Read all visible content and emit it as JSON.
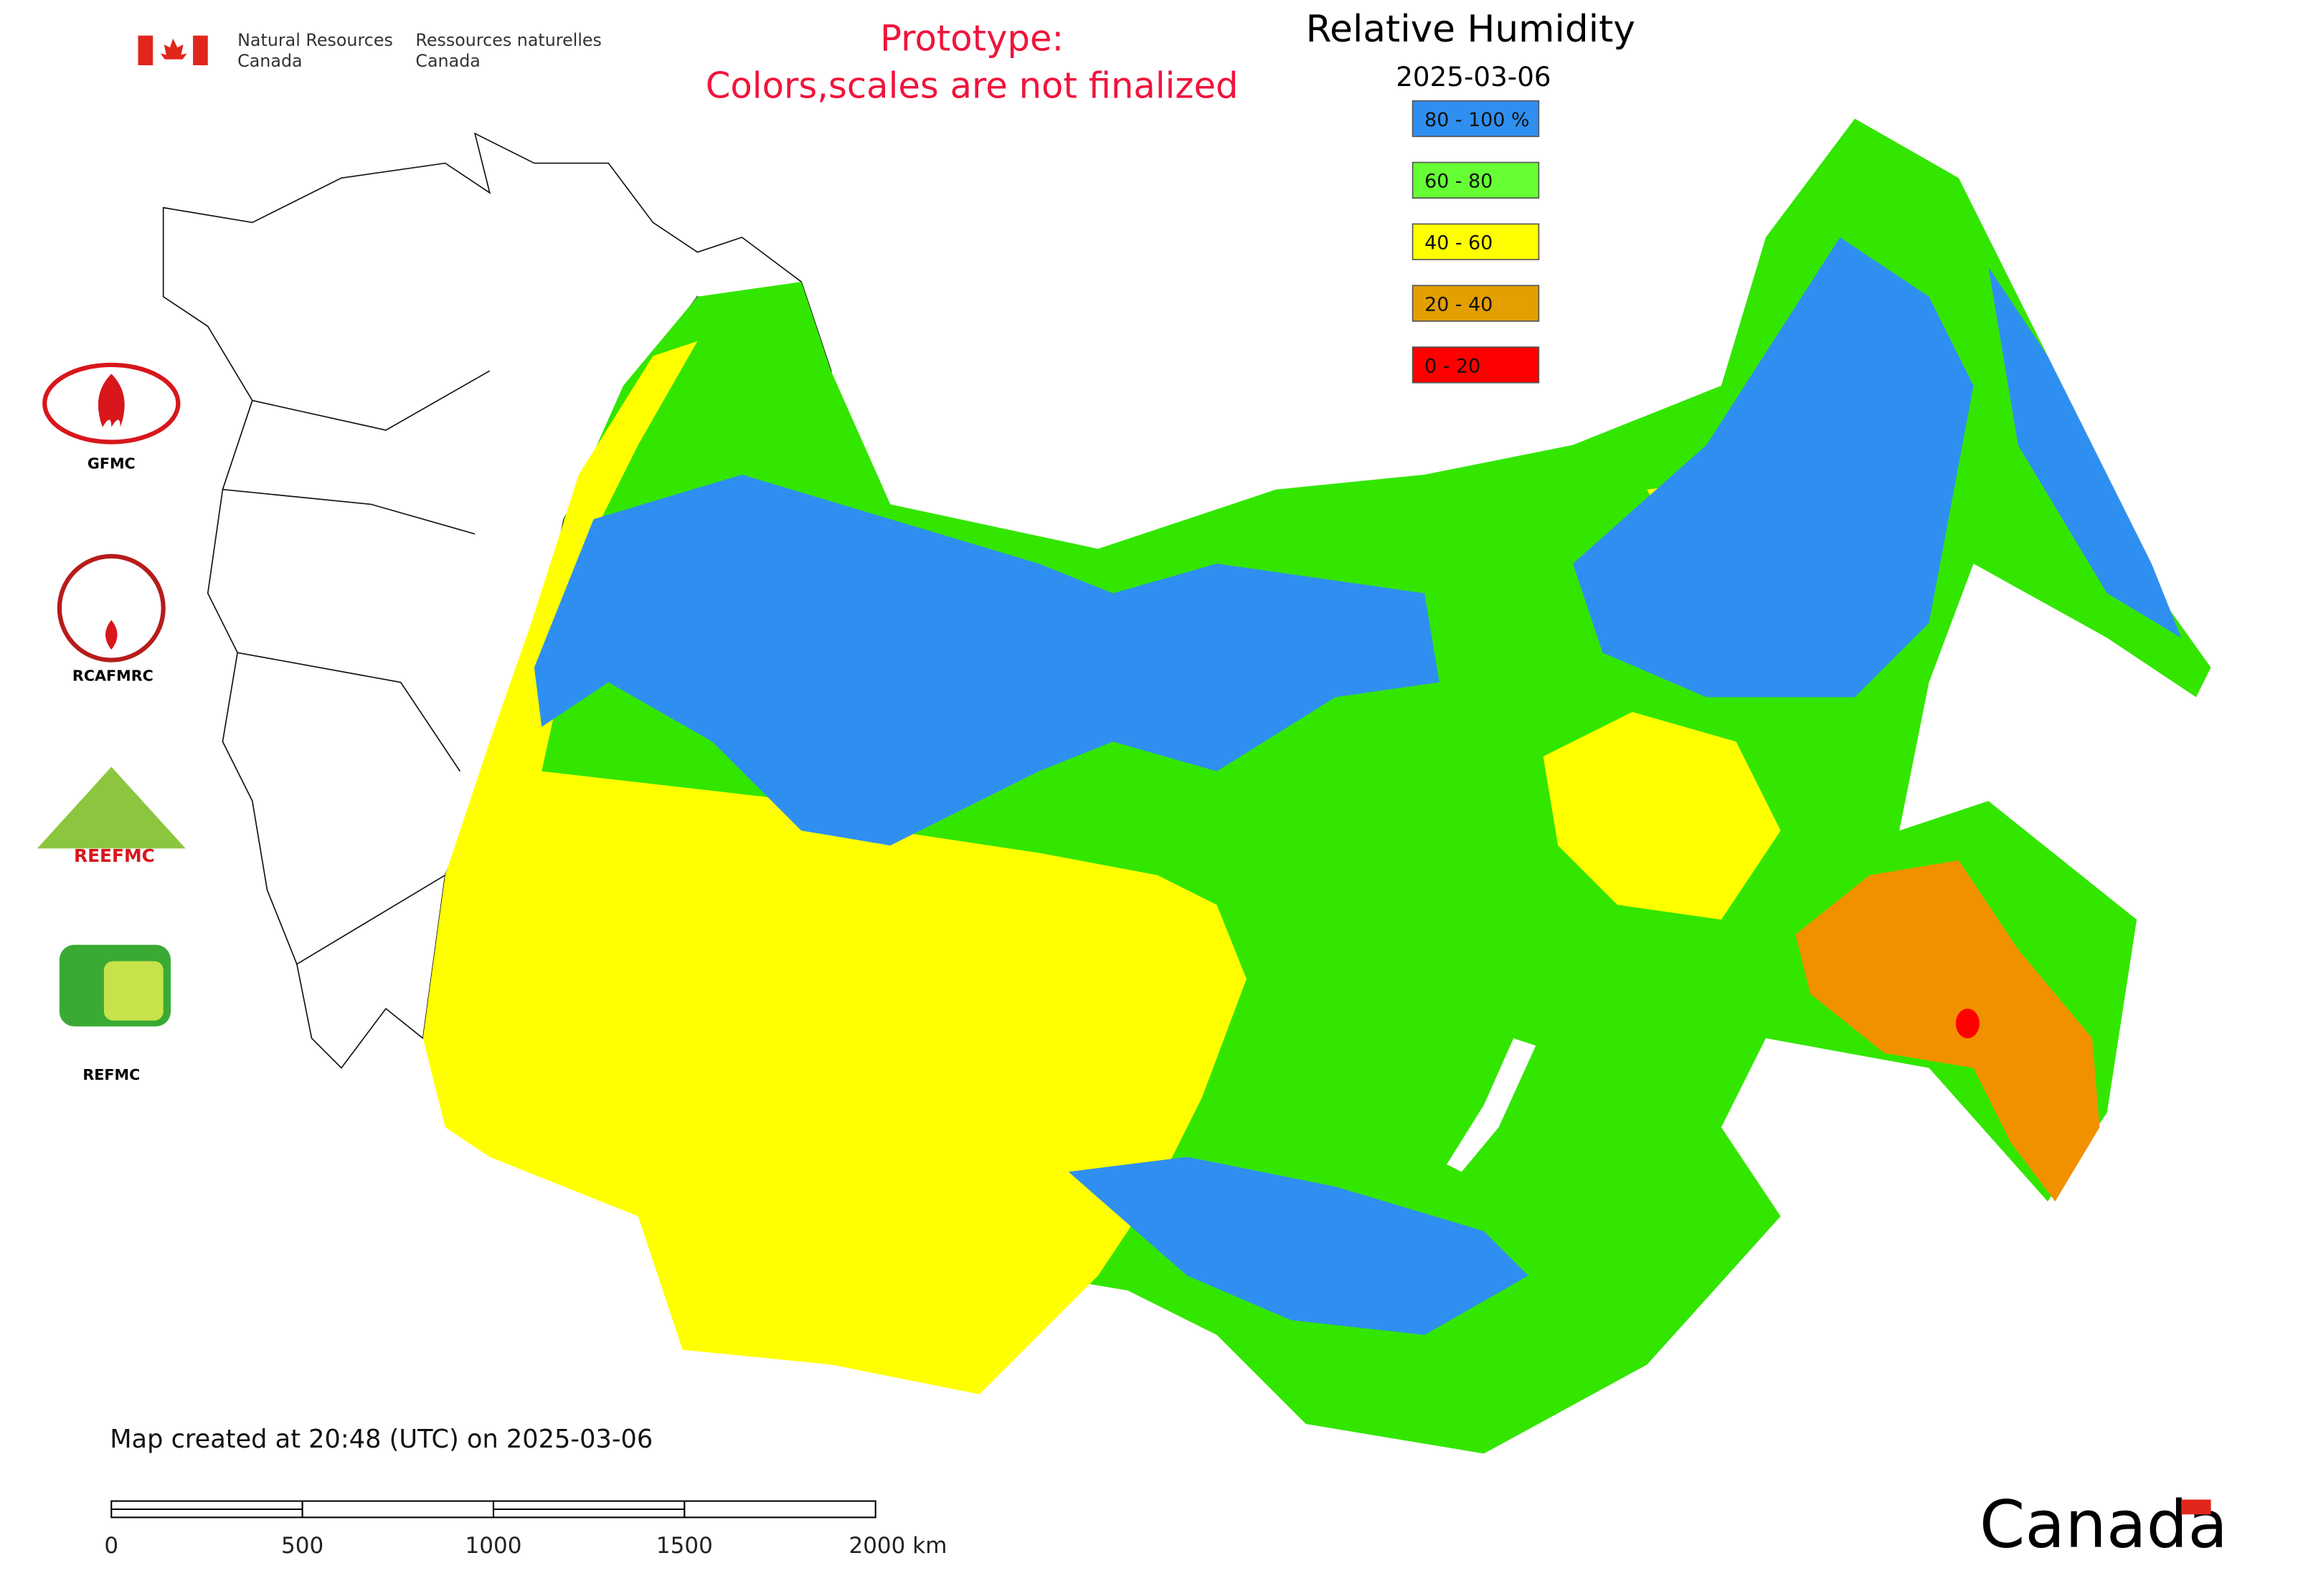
{
  "header": {
    "department_en": [
      "Natural Resources",
      "Canada"
    ],
    "department_fr": [
      "Ressources naturelles",
      "Canada"
    ],
    "notice": [
      "Prototype:",
      "Colors,scales are not finalized"
    ]
  },
  "legend": {
    "title": "Relative Humidity",
    "date": "2025-03-06",
    "items": [
      {
        "label": "80 - 100 %",
        "color": "#2f8ff0"
      },
      {
        "label": "60 - 80",
        "color": "#66ff33"
      },
      {
        "label": "40 - 60",
        "color": "#ffff00"
      },
      {
        "label": "20 - 40",
        "color": "#e39e00"
      },
      {
        "label": "0 - 20",
        "color": "#ff0000"
      }
    ]
  },
  "logos": [
    "GFMC",
    "RCAFMRC",
    "REEFMC",
    "REFMC"
  ],
  "footer": {
    "created": "Map created at 20:48 (UTC) on 2025-03-06",
    "scale_labels": [
      "0",
      "500",
      "1000",
      "1500",
      "2000 km"
    ],
    "wordmark": "Canada"
  }
}
